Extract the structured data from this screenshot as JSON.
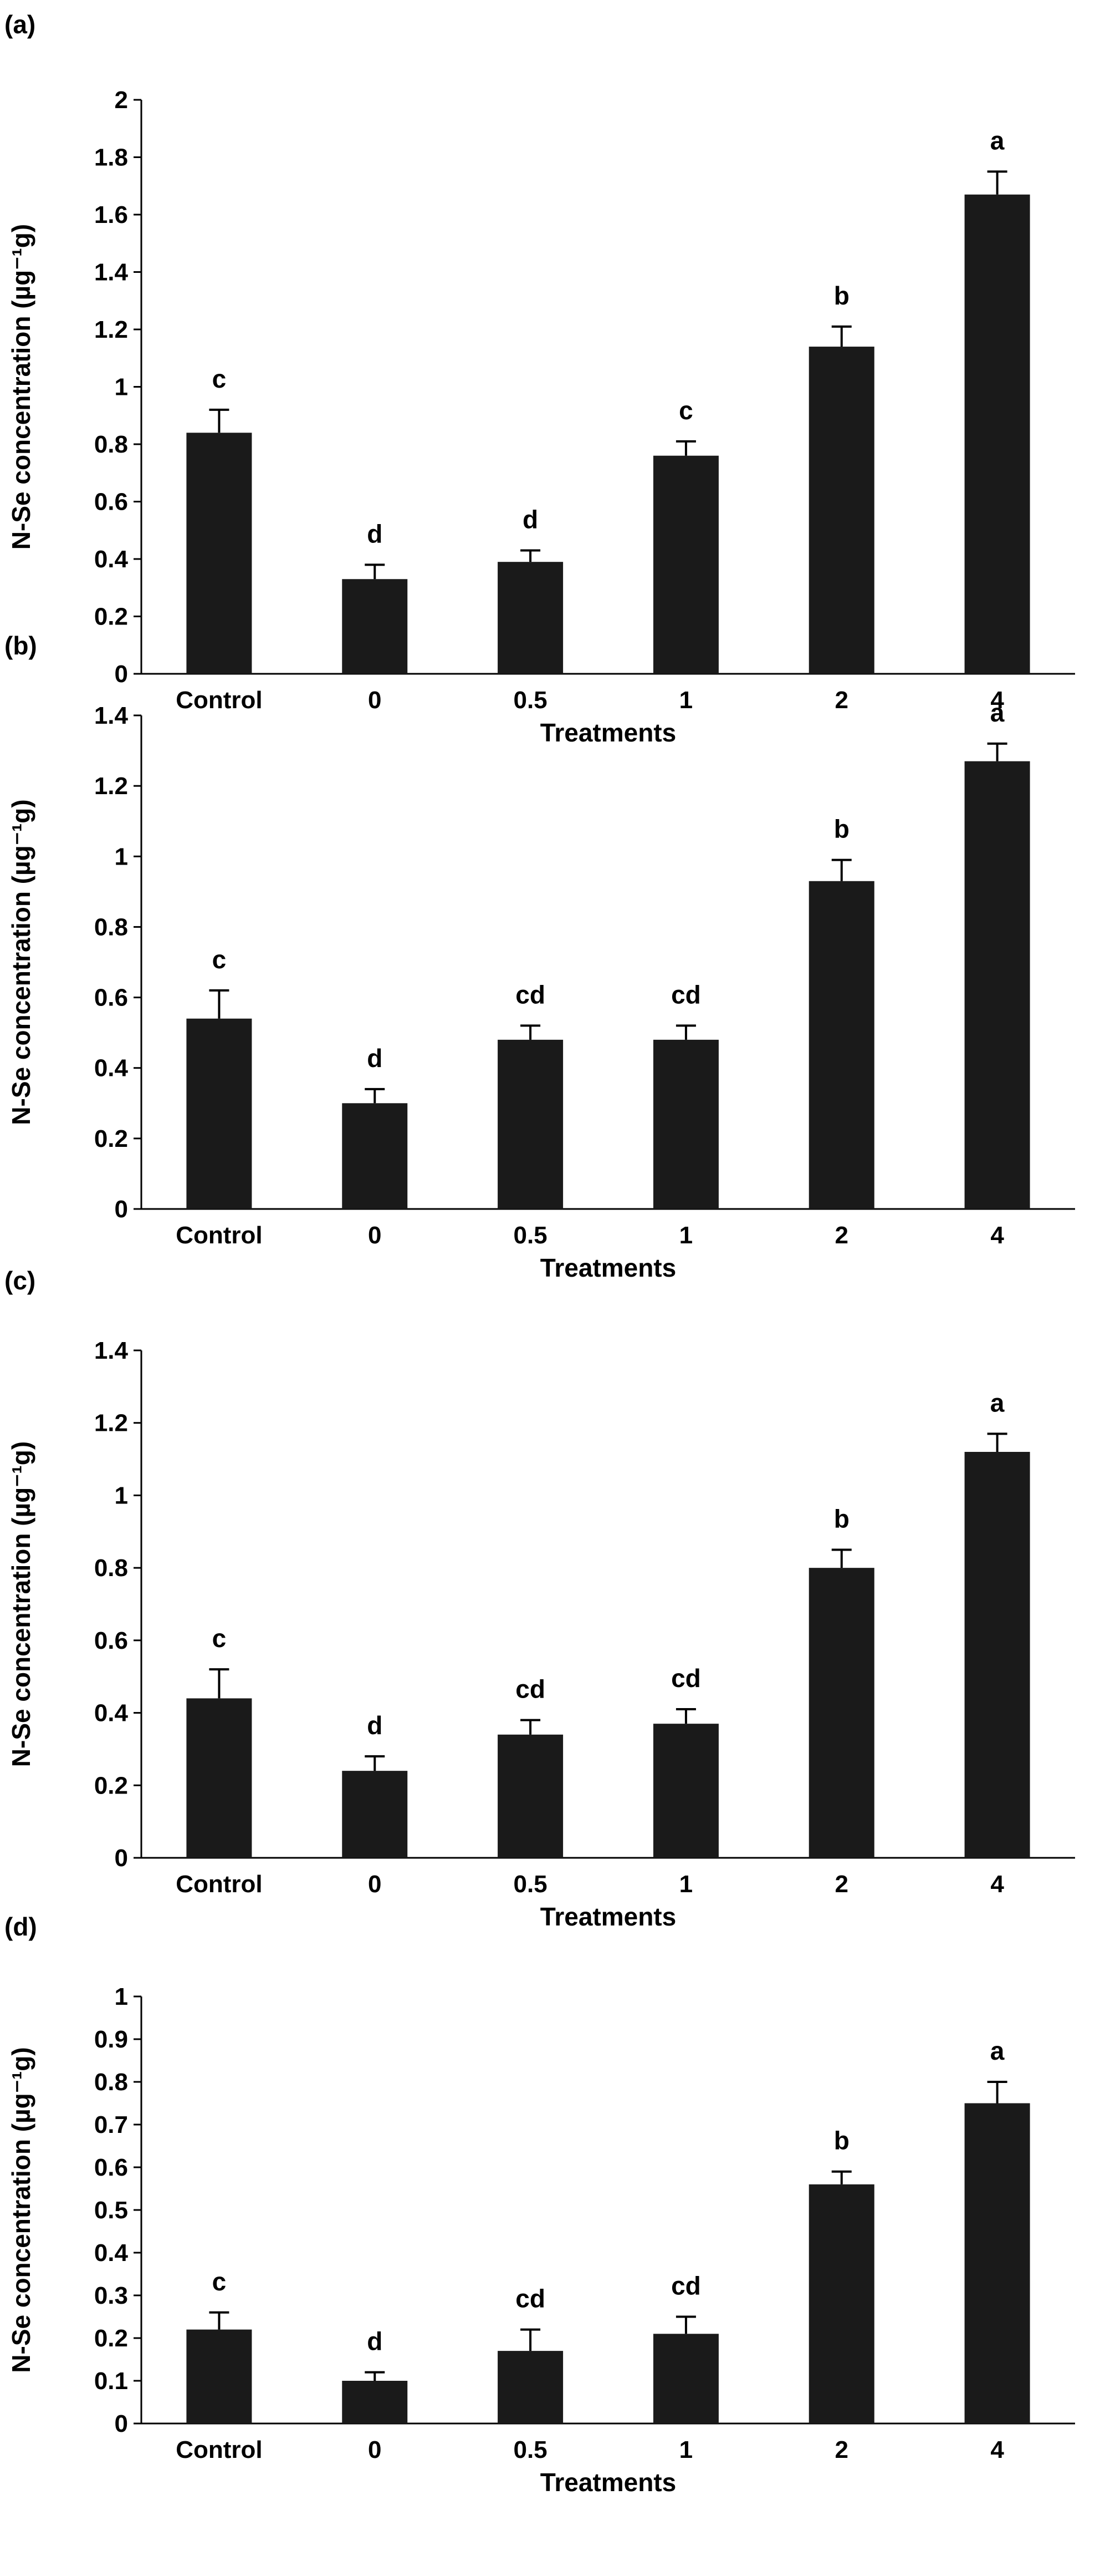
{
  "colors": {
    "bar": "#1a1a1a",
    "axis": "#000000",
    "background": "#ffffff"
  },
  "chart_data": [
    {
      "panel": "(a)",
      "type": "bar",
      "categories": [
        "Control",
        "0",
        "0.5",
        "1",
        "2",
        "4"
      ],
      "values": [
        0.84,
        0.33,
        0.39,
        0.76,
        1.14,
        1.67
      ],
      "errors": [
        0.08,
        0.05,
        0.04,
        0.05,
        0.07,
        0.08
      ],
      "significance": [
        "c",
        "d",
        "d",
        "c",
        "b",
        "a"
      ],
      "xlabel": "Treatments",
      "ylabel": "N-Se concentration (µg⁻¹g)",
      "ylim": [
        0,
        2
      ],
      "yticks": [
        0,
        0.2,
        0.4,
        0.6,
        0.8,
        1,
        1.2,
        1.4,
        1.6,
        1.8,
        2
      ],
      "ytick_labels": [
        "0",
        "0.2",
        "0.4",
        "0.6",
        "0.8",
        "1",
        "1.2",
        "1.4",
        "1.6",
        "1.8",
        "2"
      ],
      "grid": false
    },
    {
      "panel": "(b)",
      "type": "bar",
      "categories": [
        "Control",
        "0",
        "0.5",
        "1",
        "2",
        "4"
      ],
      "values": [
        0.54,
        0.3,
        0.48,
        0.48,
        0.93,
        1.27
      ],
      "errors": [
        0.08,
        0.04,
        0.04,
        0.04,
        0.06,
        0.05
      ],
      "significance": [
        "c",
        "d",
        "cd",
        "cd",
        "b",
        "a"
      ],
      "xlabel": "Treatments",
      "ylabel": "N-Se concentration (µg⁻¹g)",
      "ylim": [
        0,
        1.4
      ],
      "yticks": [
        0,
        0.2,
        0.4,
        0.6,
        0.8,
        1,
        1.2,
        1.4
      ],
      "ytick_labels": [
        "0",
        "0.2",
        "0.4",
        "0.6",
        "0.8",
        "1",
        "1.2",
        "1.4"
      ],
      "grid": false
    },
    {
      "panel": "(c)",
      "type": "bar",
      "categories": [
        "Control",
        "0",
        "0.5",
        "1",
        "2",
        "4"
      ],
      "values": [
        0.44,
        0.24,
        0.34,
        0.37,
        0.8,
        1.12
      ],
      "errors": [
        0.08,
        0.04,
        0.04,
        0.04,
        0.05,
        0.05
      ],
      "significance": [
        "c",
        "d",
        "cd",
        "cd",
        "b",
        "a"
      ],
      "xlabel": "Treatments",
      "ylabel": "N-Se concentration (µg⁻¹g)",
      "ylim": [
        0,
        1.4
      ],
      "yticks": [
        0,
        0.2,
        0.4,
        0.6,
        0.8,
        1,
        1.2,
        1.4
      ],
      "ytick_labels": [
        "0",
        "0.2",
        "0.4",
        "0.6",
        "0.8",
        "1",
        "1.2",
        "1.4"
      ],
      "grid": false
    },
    {
      "panel": "(d)",
      "type": "bar",
      "categories": [
        "Control",
        "0",
        "0.5",
        "1",
        "2",
        "4"
      ],
      "values": [
        0.22,
        0.1,
        0.17,
        0.21,
        0.56,
        0.75
      ],
      "errors": [
        0.04,
        0.02,
        0.05,
        0.04,
        0.03,
        0.05
      ],
      "significance": [
        "c",
        "d",
        "cd",
        "cd",
        "b",
        "a"
      ],
      "xlabel": "Treatments",
      "ylabel": "N-Se concentration (µg⁻¹g)",
      "ylim": [
        0,
        1
      ],
      "yticks": [
        0,
        0.1,
        0.2,
        0.3,
        0.4,
        0.5,
        0.6,
        0.7,
        0.8,
        0.9,
        1
      ],
      "ytick_labels": [
        "0",
        "0.1",
        "0.2",
        "0.3",
        "0.4",
        "0.5",
        "0.6",
        "0.7",
        "0.8",
        "0.9",
        "1"
      ],
      "grid": false
    }
  ]
}
